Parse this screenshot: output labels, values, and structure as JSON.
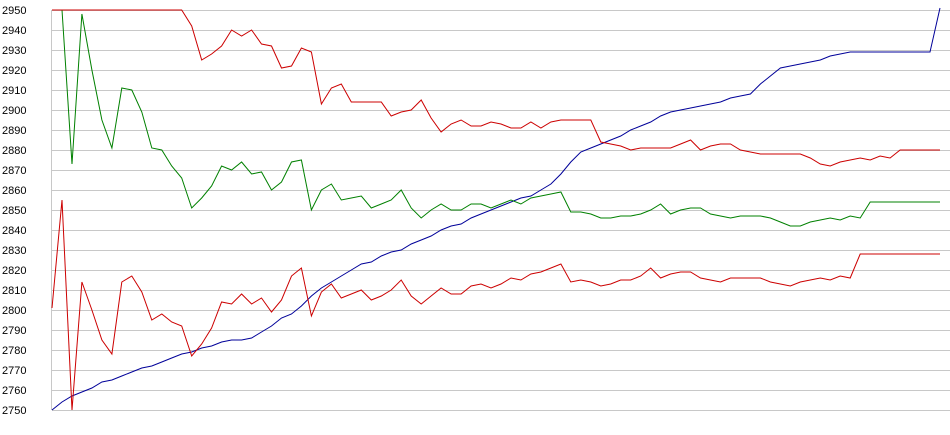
{
  "chart_data": {
    "type": "line",
    "title": "",
    "xlabel": "",
    "ylabel": "",
    "ylim": [
      2750,
      2950
    ],
    "yticks": [
      2750,
      2760,
      2770,
      2780,
      2790,
      2800,
      2810,
      2820,
      2830,
      2840,
      2850,
      2860,
      2870,
      2880,
      2890,
      2900,
      2910,
      2920,
      2930,
      2940,
      2950
    ],
    "grid": "horizontal",
    "legend": "none",
    "x": [
      0,
      1,
      2,
      3,
      4,
      5,
      6,
      7,
      8,
      9,
      10,
      11,
      12,
      13,
      14,
      15,
      16,
      17,
      18,
      19,
      20,
      21,
      22,
      23,
      24,
      25,
      26,
      27,
      28,
      29,
      30,
      31,
      32,
      33,
      34,
      35,
      36,
      37,
      38,
      39,
      40,
      41,
      42,
      43,
      44,
      45,
      46,
      47,
      48,
      49,
      50,
      51,
      52,
      53,
      54,
      55,
      56,
      57,
      58,
      59,
      60,
      61,
      62,
      63,
      64,
      65,
      66,
      67,
      68,
      69,
      70,
      71,
      72,
      73,
      74,
      75,
      76,
      77,
      78,
      79,
      80,
      81,
      82,
      83,
      84,
      85,
      86,
      87,
      88,
      89
    ],
    "series": [
      {
        "color": "#000099",
        "values": [
          2750,
          2754,
          2757,
          2759,
          2761,
          2764,
          2765,
          2767,
          2769,
          2771,
          2772,
          2774,
          2776,
          2778,
          2779,
          2781,
          2782,
          2784,
          2785,
          2785,
          2786,
          2789,
          2792,
          2796,
          2798,
          2802,
          2807,
          2811,
          2814,
          2817,
          2820,
          2823,
          2824,
          2827,
          2829,
          2830,
          2833,
          2835,
          2837,
          2840,
          2842,
          2843,
          2846,
          2848,
          2850,
          2852,
          2854,
          2856,
          2857,
          2860,
          2863,
          2868,
          2874,
          2879,
          2881,
          2883,
          2885,
          2887,
          2890,
          2892,
          2894,
          2897,
          2899,
          2900,
          2901,
          2902,
          2903,
          2904,
          2906,
          2907,
          2908,
          2913,
          2917,
          2921,
          2922,
          2923,
          2924,
          2925,
          2927,
          2928,
          2929,
          2929,
          2929,
          2929,
          2929,
          2929,
          2929,
          2929,
          2929,
          2951
        ]
      },
      {
        "color": "#008000",
        "values": [
          2950,
          2950,
          2873,
          2948,
          2920,
          2895,
          2881,
          2911,
          2910,
          2899,
          2881,
          2880,
          2872,
          2866,
          2851,
          2856,
          2862,
          2872,
          2870,
          2874,
          2868,
          2869,
          2860,
          2864,
          2874,
          2875,
          2850,
          2860,
          2863,
          2855,
          2856,
          2857,
          2851,
          2853,
          2855,
          2860,
          2851,
          2846,
          2850,
          2853,
          2850,
          2850,
          2853,
          2853,
          2851,
          2853,
          2855,
          2853,
          2856,
          2857,
          2858,
          2859,
          2849,
          2849,
          2848,
          2846,
          2846,
          2847,
          2847,
          2848,
          2850,
          2853,
          2848,
          2850,
          2851,
          2851,
          2848,
          2847,
          2846,
          2847,
          2847,
          2847,
          2846,
          2844,
          2842,
          2842,
          2844,
          2845,
          2846,
          2845,
          2847,
          2846,
          2854,
          2854,
          2854,
          2854,
          2854,
          2854,
          2854,
          2854
        ]
      },
      {
        "color": "#cc0000",
        "values": [
          2950,
          2950,
          2950,
          2950,
          2950,
          2950,
          2950,
          2950,
          2950,
          2950,
          2950,
          2950,
          2950,
          2950,
          2942,
          2925,
          2928,
          2932,
          2940,
          2937,
          2940,
          2933,
          2932,
          2921,
          2922,
          2931,
          2929,
          2903,
          2911,
          2913,
          2904,
          2904,
          2904,
          2904,
          2897,
          2899,
          2900,
          2905,
          2896,
          2889,
          2893,
          2895,
          2892,
          2892,
          2894,
          2893,
          2891,
          2891,
          2894,
          2891,
          2894,
          2895,
          2895,
          2895,
          2895,
          2884,
          2883,
          2882,
          2880,
          2881,
          2881,
          2881,
          2881,
          2883,
          2885,
          2880,
          2882,
          2883,
          2883,
          2880,
          2879,
          2878,
          2878,
          2878,
          2878,
          2878,
          2876,
          2873,
          2872,
          2874,
          2875,
          2876,
          2875,
          2877,
          2876,
          2880,
          2880,
          2880,
          2880,
          2880
        ]
      },
      {
        "color": "#cc0000",
        "values": [
          2801,
          2855,
          2750,
          2814,
          2800,
          2785,
          2778,
          2814,
          2817,
          2809,
          2795,
          2798,
          2794,
          2792,
          2777,
          2783,
          2791,
          2804,
          2803,
          2808,
          2803,
          2806,
          2799,
          2805,
          2817,
          2821,
          2797,
          2809,
          2813,
          2806,
          2808,
          2810,
          2805,
          2807,
          2810,
          2815,
          2807,
          2803,
          2807,
          2811,
          2808,
          2808,
          2812,
          2813,
          2811,
          2813,
          2816,
          2815,
          2818,
          2819,
          2821,
          2823,
          2814,
          2815,
          2814,
          2812,
          2813,
          2815,
          2815,
          2817,
          2821,
          2816,
          2818,
          2819,
          2819,
          2816,
          2815,
          2814,
          2816,
          2816,
          2816,
          2816,
          2814,
          2813,
          2812,
          2814,
          2815,
          2816,
          2815,
          2817,
          2816,
          2828,
          2828,
          2828,
          2828,
          2828,
          2828,
          2828,
          2828,
          2828
        ]
      }
    ]
  }
}
